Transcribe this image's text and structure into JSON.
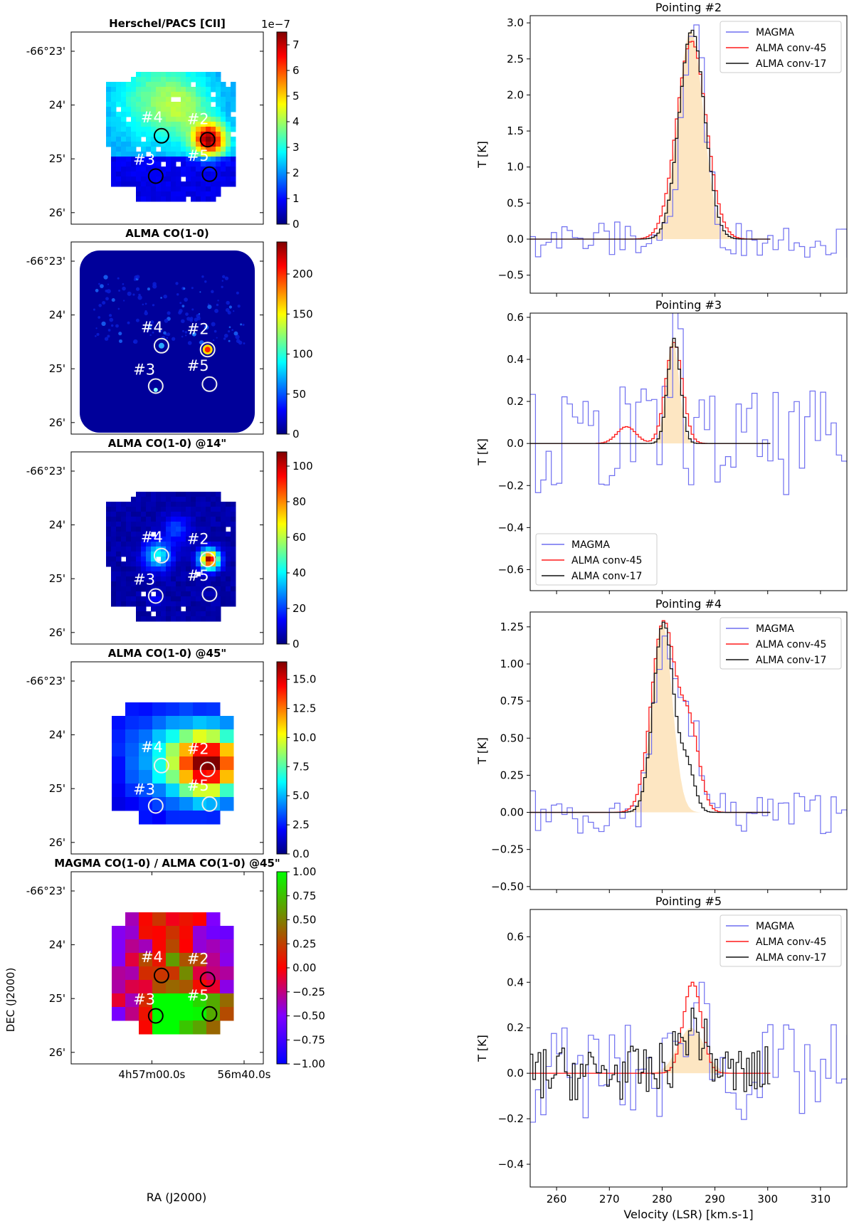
{
  "colors": {
    "magma": "#6f6ff0",
    "alma45": "#ff1a1a",
    "alma17": "#111111",
    "fill": "#fde6c2",
    "jet": [
      "#00007f",
      "#0000ff",
      "#007fff",
      "#00ffff",
      "#7fff7f",
      "#ffff00",
      "#ff7f00",
      "#ff0000",
      "#7f0000"
    ],
    "ratio": [
      "#0000ff",
      "#7f00ff",
      "#ff0000",
      "#7f7f00",
      "#00ff00"
    ]
  },
  "dec_axis_label": "DEC (J2000)",
  "ra_axis_label": "RA (J2000)",
  "dec_ticks": [
    "-66°23'",
    "24'",
    "25'",
    "26'"
  ],
  "ra_ticks": [
    "4h57m00.0s",
    "56m40.0s"
  ],
  "pointings": [
    "#2",
    "#3",
    "#4",
    "#5"
  ],
  "maps": [
    {
      "title": "Herschel/PACS [CII]",
      "cbar_ticks": [
        "0",
        "1",
        "2",
        "3",
        "4",
        "5",
        "6",
        "7"
      ],
      "cbar_offset": "1e−7",
      "cbar_range": [
        0,
        7.5
      ],
      "type": "cii"
    },
    {
      "title": "ALMA CO(1-0)",
      "cbar_ticks": [
        "0",
        "50",
        "100",
        "150",
        "200"
      ],
      "cbar_range": [
        0,
        240
      ],
      "type": "alma"
    },
    {
      "title": "ALMA CO(1-0) @14\"",
      "cbar_ticks": [
        "0",
        "20",
        "40",
        "60",
        "80",
        "100"
      ],
      "cbar_range": [
        0,
        108
      ],
      "type": "alma14"
    },
    {
      "title": "ALMA CO(1-0) @45\"",
      "cbar_ticks": [
        "0.0",
        "2.5",
        "5.0",
        "7.5",
        "10.0",
        "12.5",
        "15.0"
      ],
      "cbar_range": [
        0,
        16.5
      ],
      "type": "alma45"
    },
    {
      "title": "MAGMA CO(1-0) / ALMA CO(1-0) @45\"",
      "cbar_ticks": [
        "1.00",
        "0.75",
        "0.50",
        "0.25",
        "0.00",
        "−0.25",
        "−0.50",
        "−0.75",
        "−1.00"
      ],
      "cbar_range": [
        -1,
        1
      ],
      "type": "ratio"
    }
  ],
  "chart_data": [
    {
      "type": "line",
      "title": "Pointing #2",
      "ylabel": "T [K]",
      "xlim": [
        255,
        315
      ],
      "ylim": [
        -0.75,
        3.1
      ],
      "yticks": [
        "−0.5",
        "0.0",
        "0.5",
        "1.0",
        "1.5",
        "2.0",
        "2.5",
        "3.0"
      ],
      "legend": "top-right",
      "series": [
        {
          "name": "MAGMA",
          "style": "step",
          "peak": 2.9,
          "center": 285.5,
          "width": 2.2,
          "noise": 0.25
        },
        {
          "name": "ALMA conv-45",
          "style": "step",
          "peak": 2.75,
          "center": 285.3,
          "width": 2.8,
          "noise": 0.0
        },
        {
          "name": "ALMA conv-17",
          "style": "step",
          "peak": 2.9,
          "center": 285.4,
          "width": 2.4,
          "noise": 0.0
        }
      ]
    },
    {
      "type": "line",
      "title": "Pointing #3",
      "ylabel": "T [K]",
      "xlim": [
        255,
        315
      ],
      "ylim": [
        -0.7,
        0.62
      ],
      "yticks": [
        "−0.6",
        "−0.4",
        "−0.2",
        "0.0",
        "0.2",
        "0.4",
        "0.6"
      ],
      "legend": "bottom-left",
      "series": [
        {
          "name": "MAGMA",
          "style": "step",
          "peak": 0.5,
          "center": 282,
          "width": 1.2,
          "noise": 0.25
        },
        {
          "name": "ALMA conv-45",
          "style": "step",
          "peak": 0.48,
          "center": 282,
          "width": 1.6,
          "noise": 0.0
        },
        {
          "name": "ALMA conv-17",
          "style": "step",
          "peak": 0.5,
          "center": 282,
          "width": 1.2,
          "noise": 0.0
        }
      ]
    },
    {
      "type": "line",
      "title": "Pointing #4",
      "ylabel": "T [K]",
      "xlim": [
        255,
        315
      ],
      "ylim": [
        -0.52,
        1.35
      ],
      "yticks": [
        "−0.50",
        "−0.25",
        "0.00",
        "0.25",
        "0.50",
        "0.75",
        "1.00",
        "1.25"
      ],
      "legend": "top-right",
      "series": [
        {
          "name": "MAGMA",
          "style": "step",
          "peak": 1.2,
          "center": 280,
          "width": 2.0,
          "noise": 0.15
        },
        {
          "name": "ALMA conv-45",
          "style": "step",
          "peak": 1.28,
          "center": 280,
          "width": 2.3,
          "noise": 0.0
        },
        {
          "name": "ALMA conv-17",
          "style": "step",
          "peak": 1.28,
          "center": 280,
          "width": 1.9,
          "noise": 0.0
        }
      ]
    },
    {
      "type": "line",
      "title": "Pointing #5",
      "ylabel": "T [K]",
      "xlabel": "Velocity (LSR) [km.s-1]",
      "xlim": [
        255,
        315
      ],
      "xticks": [
        "260",
        "270",
        "280",
        "290",
        "300",
        "310"
      ],
      "ylim": [
        -0.5,
        0.72
      ],
      "yticks": [
        "−0.4",
        "−0.2",
        "0.0",
        "0.2",
        "0.4",
        "0.6"
      ],
      "legend": "top-right",
      "series": [
        {
          "name": "MAGMA",
          "style": "step",
          "peak": 0.45,
          "center": 286,
          "width": 1.5,
          "noise": 0.22
        },
        {
          "name": "ALMA conv-45",
          "style": "step",
          "peak": 0.4,
          "center": 285.5,
          "width": 1.7,
          "noise": 0.0
        },
        {
          "name": "ALMA conv-17",
          "style": "step",
          "peak": 0.2,
          "center": 285.5,
          "width": 2.5,
          "noise": 0.12
        }
      ]
    }
  ]
}
